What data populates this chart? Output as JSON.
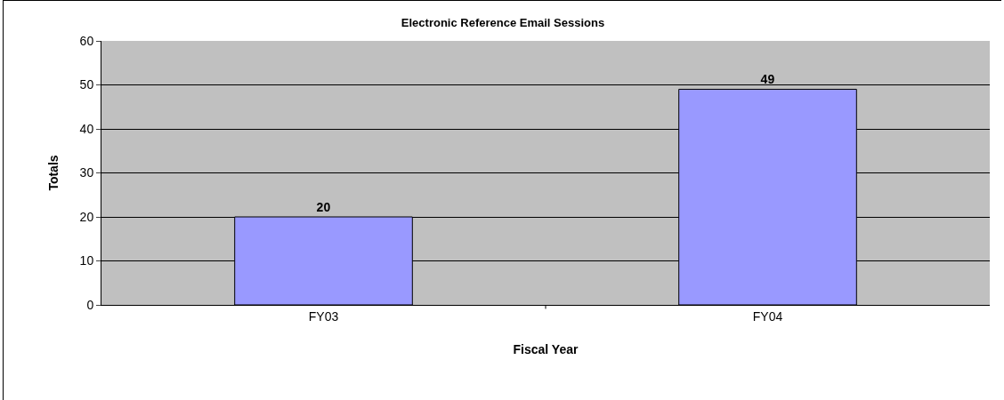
{
  "chart_data": {
    "type": "bar",
    "title": "Electronic Reference Email Sessions",
    "xlabel": "Fiscal Year",
    "ylabel": "Totals",
    "categories": [
      "FY03",
      "FY04"
    ],
    "values": [
      20,
      49
    ],
    "color": "#9999ff",
    "ylim": [
      0,
      60
    ],
    "yticks": [
      0,
      10,
      20,
      30,
      40,
      50,
      60
    ],
    "grid": "y",
    "data_labels": true,
    "legend": false
  }
}
